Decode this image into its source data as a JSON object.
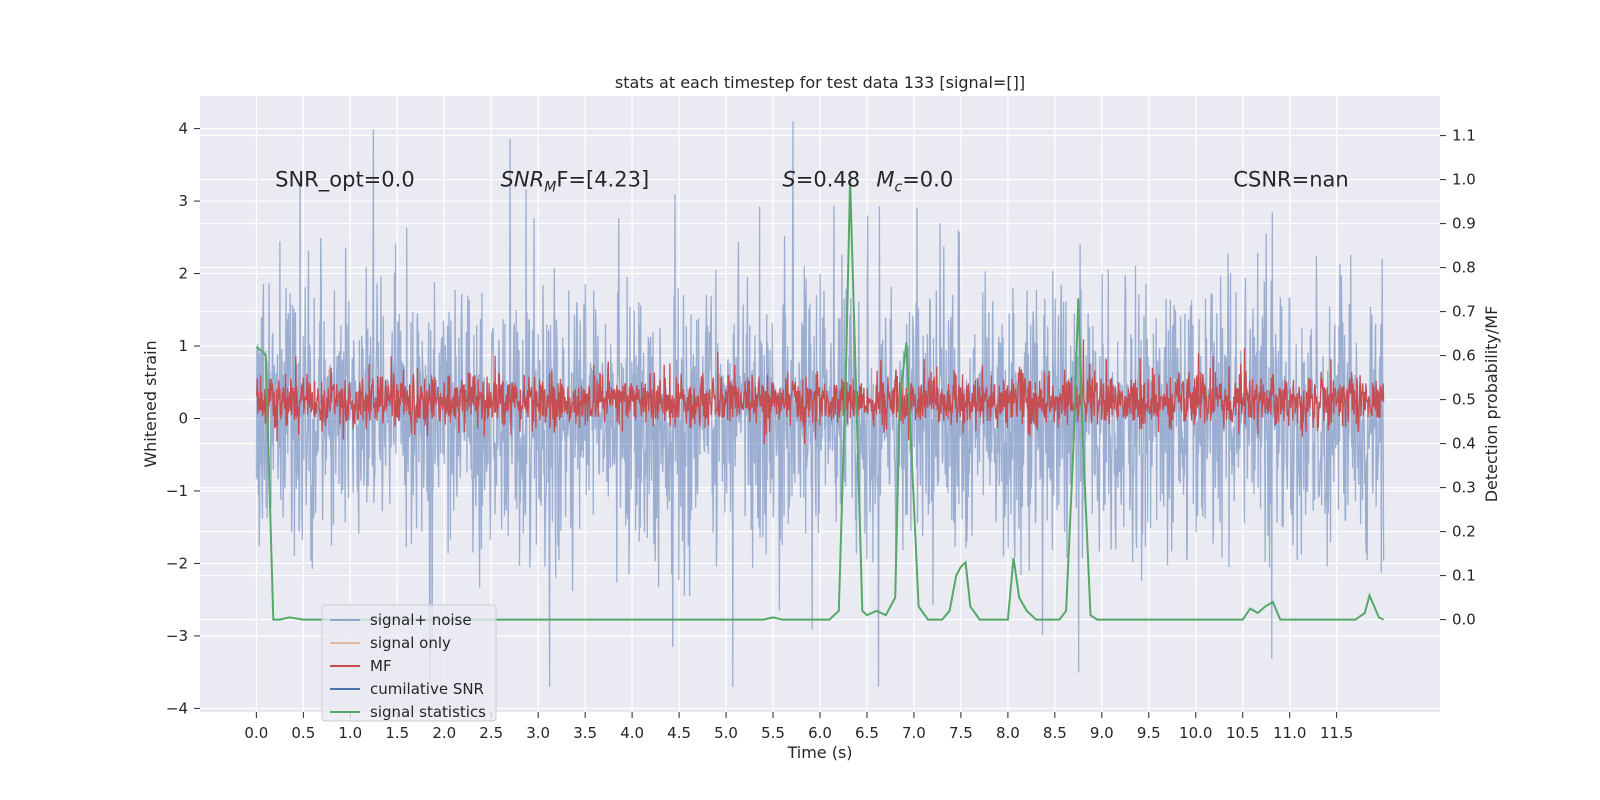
{
  "chart_data": {
    "type": "line",
    "title": "stats at each timestep for test data 133 [signal=[]]",
    "xlabel": "Time (s)",
    "ylabel_left": "Whitened strain",
    "ylabel_right": "Detection probability/MF",
    "xlim": [
      -0.6,
      12.6
    ],
    "ylim_left": [
      -4.05,
      4.45
    ],
    "ylim_right": [
      -0.21,
      1.19
    ],
    "x_ticks": [
      0.0,
      0.5,
      1.0,
      1.5,
      2.0,
      2.5,
      3.0,
      3.5,
      4.0,
      4.5,
      5.0,
      5.5,
      6.0,
      6.5,
      7.0,
      7.5,
      8.0,
      8.5,
      9.0,
      9.5,
      10.0,
      10.5,
      11.0,
      11.5
    ],
    "x_tick_labels": [
      "0.0",
      "0.5",
      "1.0",
      "1.5",
      "2.0",
      "2.5",
      "3.0",
      "3.5",
      "4.0",
      "4.5",
      "5.0",
      "5.5",
      "6.0",
      "6.5",
      "7.0",
      "7.5",
      "8.0",
      "8.5",
      "9.0",
      "9.5",
      "10.0",
      "10.5",
      "11.0",
      "11.5"
    ],
    "y_ticks_left": [
      -4,
      -3,
      -2,
      -1,
      0,
      1,
      2,
      3,
      4
    ],
    "y_tick_labels_left": [
      "−4",
      "−3",
      "−2",
      "−1",
      "0",
      "1",
      "2",
      "3",
      "4"
    ],
    "y_ticks_right": [
      0.0,
      0.1,
      0.2,
      0.3,
      0.4,
      0.5,
      0.6,
      0.7,
      0.8,
      0.9,
      1.0,
      1.1
    ],
    "y_tick_labels_right": [
      "0.0",
      "0.1",
      "0.2",
      "0.3",
      "0.4",
      "0.5",
      "0.6",
      "0.7",
      "0.8",
      "0.9",
      "1.0",
      "1.1"
    ],
    "grid": true,
    "legend_position": "lower-left",
    "annotations": [
      {
        "id": "snr-opt",
        "text": "SNR_opt=0.0",
        "x": 0.2,
        "y": 3.2
      },
      {
        "id": "snr-mf",
        "text": "SNR",
        "sub": "M",
        "rest": "F=[4.23]",
        "x": 2.6,
        "y": 3.2
      },
      {
        "id": "s-stat",
        "text": "S",
        "rest": "=0.48",
        "x": 5.6,
        "y": 3.2
      },
      {
        "id": "mc-stat",
        "text": "M",
        "sub": "c",
        "rest": "=0.0",
        "x": 6.6,
        "y": 3.2
      },
      {
        "id": "csnr",
        "text": "CSNR=nan",
        "x": 10.4,
        "y": 3.2
      }
    ],
    "series": [
      {
        "name": "signal+ noise",
        "color": "#4c72b0",
        "alpha": 0.5,
        "axis": "left",
        "description": "whitened noisy data, dense trace",
        "x_range": [
          0.0,
          12.0
        ],
        "typical_band": [
          -1.3,
          1.3
        ],
        "max": 4.1,
        "min": -3.7
      },
      {
        "name": "signal only",
        "color": "#dd8452",
        "alpha": 0.5,
        "axis": "left",
        "values_constant": 0.0
      },
      {
        "name": "MF",
        "color": "#c44e52",
        "axis": "right",
        "description": "matched-filter output, dense trace",
        "x_range": [
          0.0,
          12.0
        ],
        "typical_band_right": [
          0.41,
          0.58
        ],
        "max_right": 0.65,
        "min_right": 0.39
      },
      {
        "name": "cumilative SNR",
        "color": "#4c72b0",
        "axis": "right",
        "values": []
      },
      {
        "name": "signal statistics",
        "color": "#55a868",
        "axis": "right",
        "x": [
          0.0,
          0.06,
          0.1,
          0.14,
          0.18,
          0.25,
          0.35,
          0.5,
          1.0,
          2.0,
          3.0,
          4.0,
          5.0,
          5.4,
          5.5,
          5.6,
          6.0,
          6.1,
          6.2,
          6.28,
          6.32,
          6.4,
          6.45,
          6.5,
          6.6,
          6.7,
          6.8,
          6.85,
          6.92,
          6.98,
          7.05,
          7.15,
          7.2,
          7.3,
          7.38,
          7.45,
          7.5,
          7.55,
          7.6,
          7.7,
          7.8,
          8.0,
          8.06,
          8.12,
          8.2,
          8.3,
          8.45,
          8.55,
          8.62,
          8.7,
          8.75,
          8.8,
          8.88,
          8.95,
          9.1,
          9.5,
          10.0,
          10.5,
          10.5,
          10.58,
          10.66,
          10.74,
          10.82,
          10.9,
          11.0,
          11.5,
          11.7,
          11.8,
          11.85,
          11.9,
          11.95,
          12.0
        ],
        "values": [
          0.62,
          0.61,
          0.6,
          0.3,
          0.0,
          0.0,
          0.005,
          0.0,
          0.0,
          0.0,
          0.0,
          0.0,
          0.0,
          0.0,
          0.005,
          0.0,
          0.0,
          0.0,
          0.02,
          0.6,
          1.0,
          0.4,
          0.02,
          0.01,
          0.02,
          0.01,
          0.05,
          0.5,
          0.63,
          0.35,
          0.03,
          0.0,
          0.0,
          0.0,
          0.02,
          0.1,
          0.12,
          0.13,
          0.03,
          0.0,
          0.0,
          0.0,
          0.14,
          0.05,
          0.02,
          0.0,
          0.0,
          0.0,
          0.02,
          0.4,
          0.73,
          0.4,
          0.01,
          0.0,
          0.0,
          0.0,
          0.0,
          0.0,
          0.0,
          0.025,
          0.015,
          0.03,
          0.04,
          0.0,
          0.0,
          0.0,
          0.0,
          0.015,
          0.055,
          0.03,
          0.005,
          0.0
        ]
      }
    ]
  }
}
